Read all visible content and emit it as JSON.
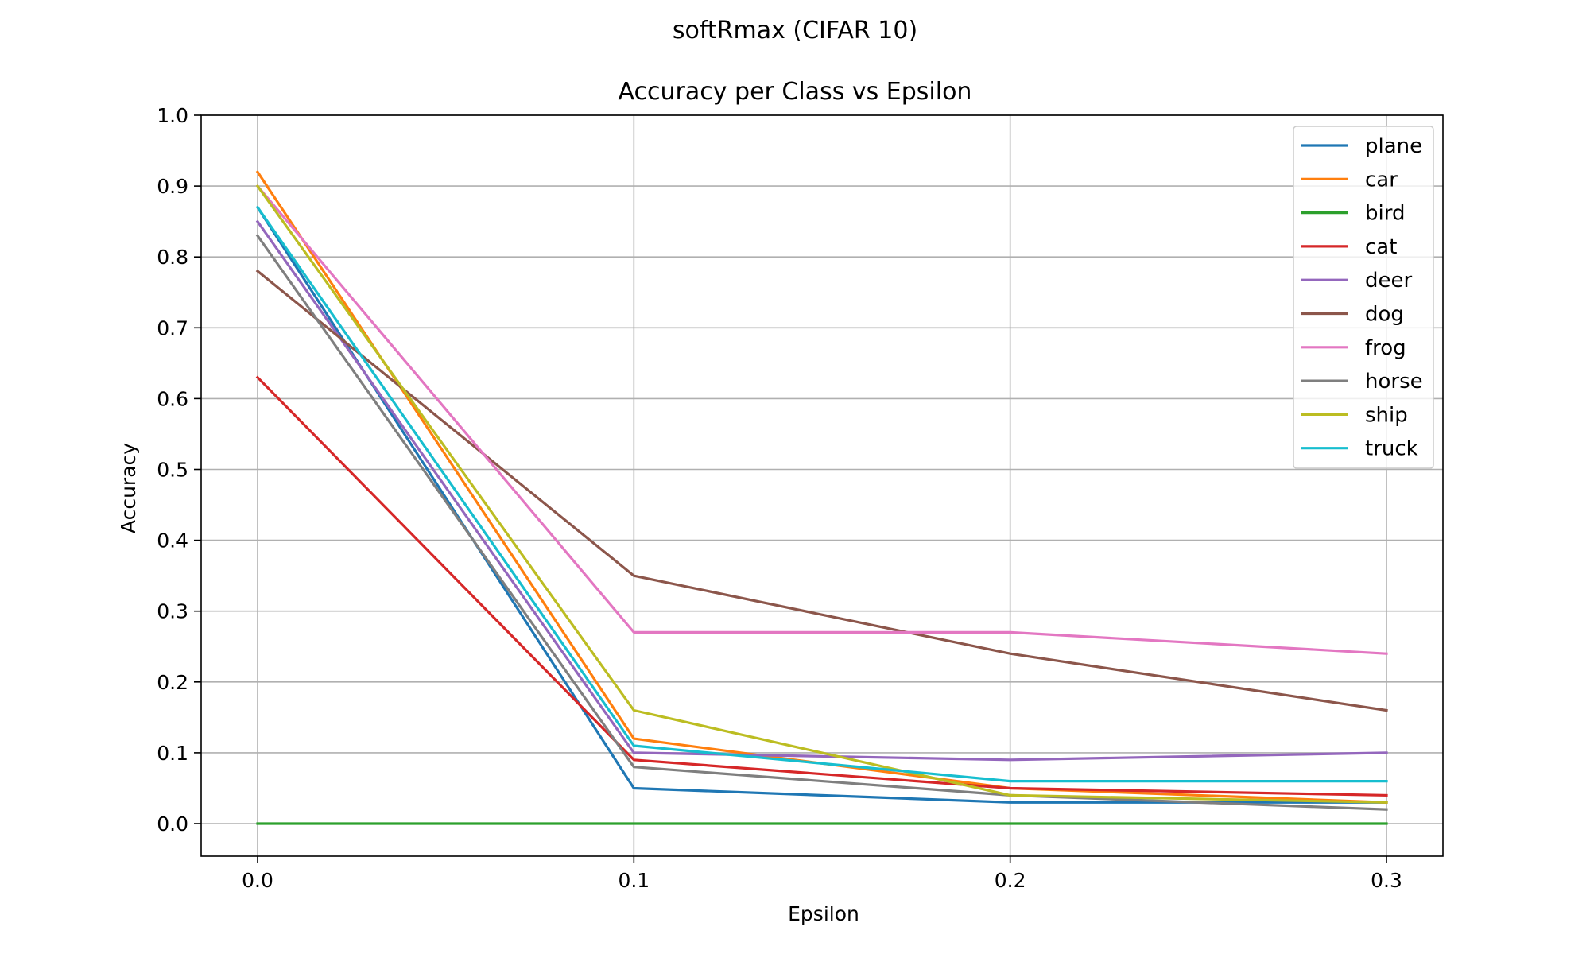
{
  "chart_data": {
    "type": "line",
    "suptitle": "softRmax (CIFAR 10)",
    "title": "Accuracy per Class vs Epsilon",
    "xlabel": "Epsilon",
    "ylabel": "Accuracy",
    "x": [
      0.0,
      0.1,
      0.2,
      0.3
    ],
    "x_tick_labels": [
      "0.0",
      "0.1",
      "0.2",
      "0.3"
    ],
    "xlim": [
      -0.015,
      0.315
    ],
    "y_ticks": [
      0.0,
      0.1,
      0.2,
      0.3,
      0.4,
      0.5,
      0.6,
      0.7,
      0.8,
      0.9,
      1.0
    ],
    "y_tick_labels": [
      "0.0",
      "0.1",
      "0.2",
      "0.3",
      "0.4",
      "0.5",
      "0.6",
      "0.7",
      "0.8",
      "0.9",
      "1.0"
    ],
    "ylim": [
      -0.046,
      1.0
    ],
    "grid": true,
    "legend_position": "top-right",
    "series": [
      {
        "name": "plane",
        "color": "#1f77b4",
        "values": [
          0.87,
          0.05,
          0.03,
          0.03
        ]
      },
      {
        "name": "car",
        "color": "#ff7f0e",
        "values": [
          0.92,
          0.12,
          0.05,
          0.03
        ]
      },
      {
        "name": "bird",
        "color": "#2ca02c",
        "values": [
          0.0,
          0.0,
          0.0,
          0.0
        ]
      },
      {
        "name": "cat",
        "color": "#d62728",
        "values": [
          0.63,
          0.09,
          0.05,
          0.04
        ]
      },
      {
        "name": "deer",
        "color": "#9467bd",
        "values": [
          0.85,
          0.1,
          0.09,
          0.1
        ]
      },
      {
        "name": "dog",
        "color": "#8c564b",
        "values": [
          0.78,
          0.35,
          0.24,
          0.16
        ]
      },
      {
        "name": "frog",
        "color": "#e377c2",
        "values": [
          0.9,
          0.27,
          0.27,
          0.24
        ]
      },
      {
        "name": "horse",
        "color": "#7f7f7f",
        "values": [
          0.83,
          0.08,
          0.04,
          0.02
        ]
      },
      {
        "name": "ship",
        "color": "#bcbd22",
        "values": [
          0.9,
          0.16,
          0.04,
          0.03
        ]
      },
      {
        "name": "truck",
        "color": "#17becf",
        "values": [
          0.87,
          0.11,
          0.06,
          0.06
        ]
      }
    ]
  }
}
